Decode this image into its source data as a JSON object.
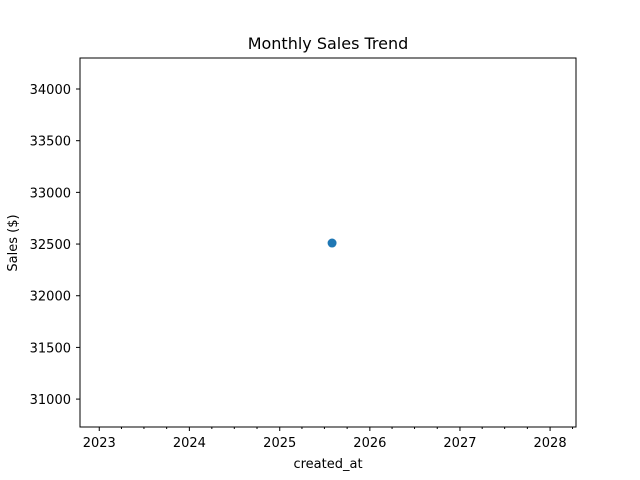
{
  "chart_data": {
    "type": "scatter",
    "title": "Monthly Sales Trend",
    "xlabel": "created_at",
    "ylabel": "Sales ($)",
    "x_axis_type": "date",
    "xlim": [
      "2022-10-15",
      "2028-04-15"
    ],
    "ylim": [
      30730,
      34300
    ],
    "x_ticks": [
      "2023",
      "2024",
      "2025",
      "2026",
      "2027",
      "2028"
    ],
    "y_ticks": [
      31000,
      31500,
      32000,
      32500,
      33000,
      33500,
      34000
    ],
    "series": [
      {
        "color": "#1f77b4",
        "marker": "circle",
        "points": [
          {
            "x": "2025-08-01",
            "y": 32510
          }
        ]
      }
    ],
    "grid": false,
    "legend": "none"
  }
}
